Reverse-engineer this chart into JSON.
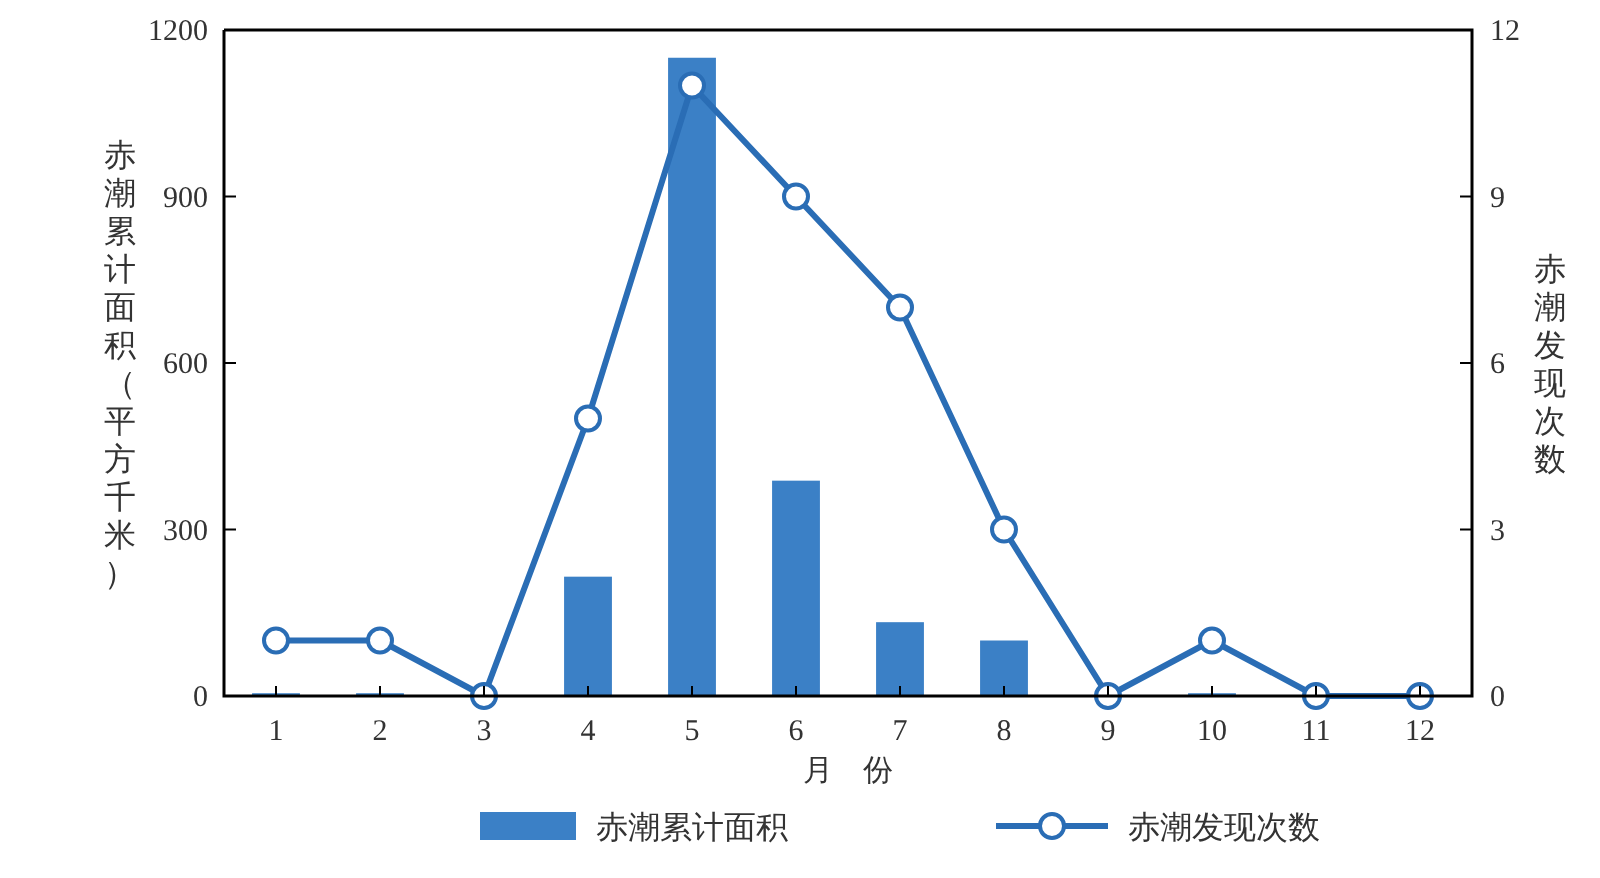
{
  "chart_data": {
    "type": "bar",
    "categories": [
      "1",
      "2",
      "3",
      "4",
      "5",
      "6",
      "7",
      "8",
      "9",
      "10",
      "11",
      "12"
    ],
    "xlabel": "月　份",
    "ylabel": "赤潮累计面积（平方千米）",
    "y2label": "赤潮发现次数",
    "ylim": [
      0,
      1200
    ],
    "yticks": [
      0,
      300,
      600,
      900,
      1200
    ],
    "y2lim": [
      0,
      12
    ],
    "y2ticks": [
      0,
      3,
      6,
      9,
      12
    ],
    "legend": "bottom",
    "grid": false,
    "series": [
      {
        "name": "赤潮累计面积",
        "color": "#3b80c6",
        "values": [
          5,
          5,
          0,
          215,
          1150,
          388,
          133,
          100,
          0,
          5,
          0,
          0
        ]
      },
      {
        "name": "赤潮发现次数",
        "type": "line",
        "axis": "y2",
        "color": "#2a6db5",
        "marker": "circle",
        "line_style": "solid",
        "values": [
          1,
          1,
          0,
          5,
          11,
          9,
          7,
          3,
          0,
          1,
          0,
          0
        ]
      }
    ]
  }
}
